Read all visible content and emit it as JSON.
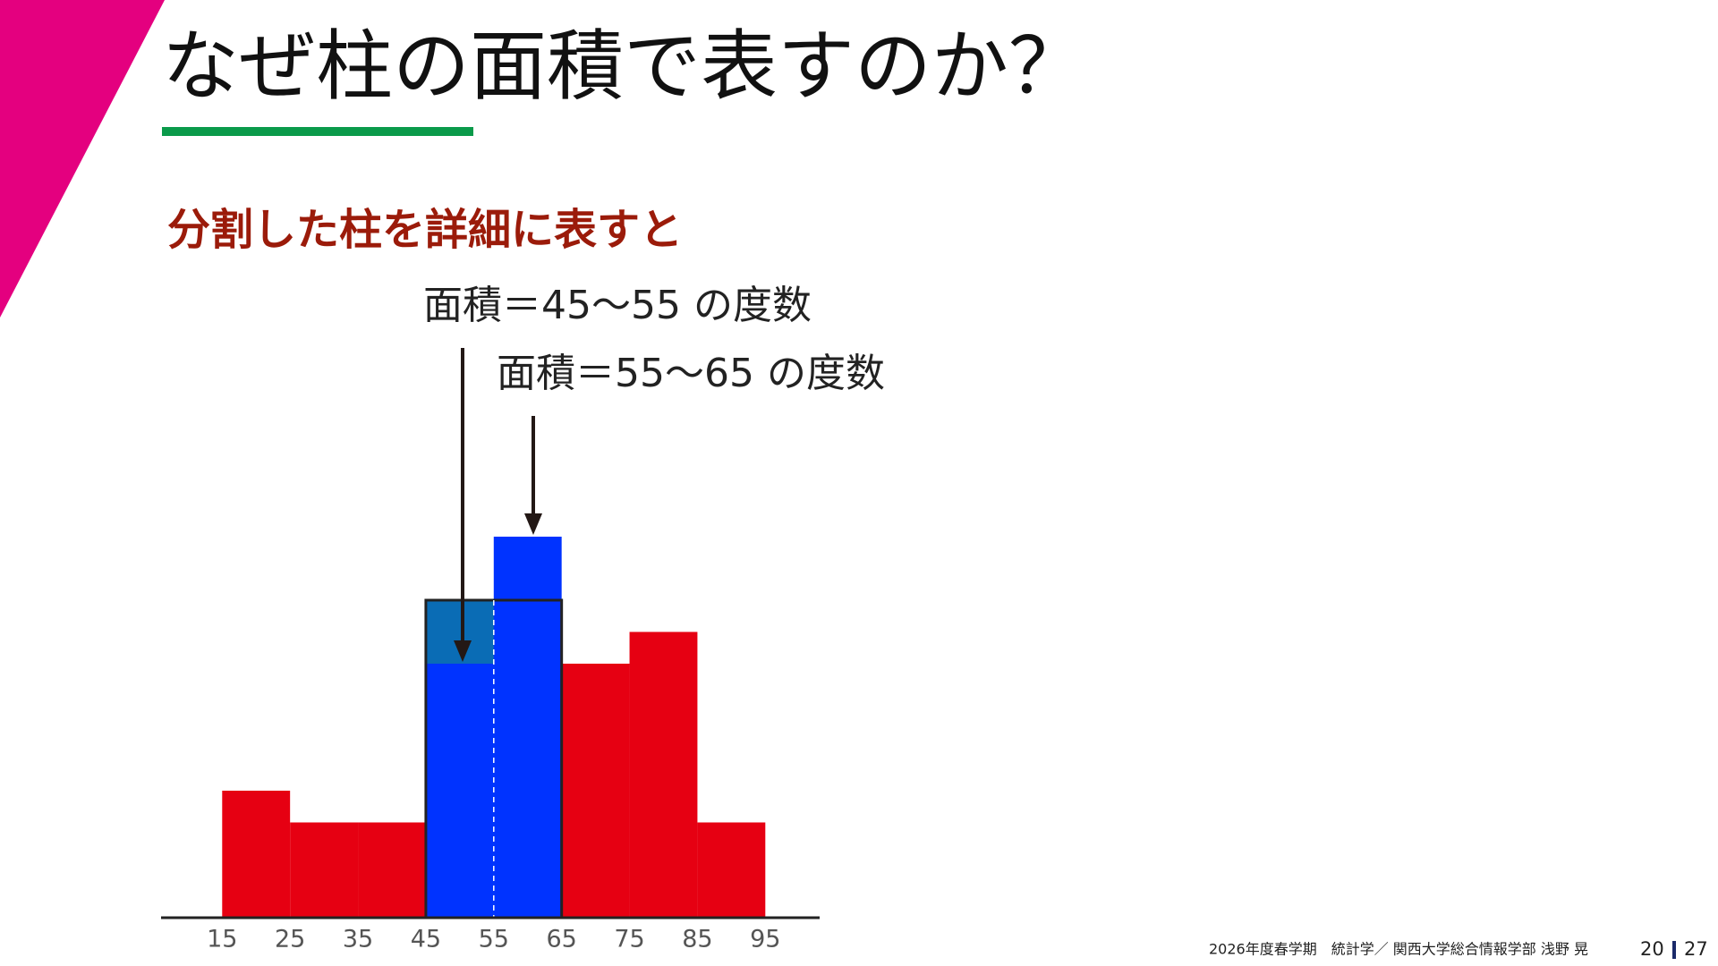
{
  "header": {
    "title": "なぜ柱の面積で表すのか？",
    "subtitle": "分割した柱を詳細に表すと"
  },
  "chart_data": {
    "type": "histogram",
    "annotations": [
      "面積＝45〜55 の度数",
      "面積＝55〜65 の度数"
    ],
    "bins": [
      15,
      25,
      35,
      45,
      55,
      65,
      75,
      85,
      95
    ],
    "values": [
      4,
      3,
      3,
      8,
      12,
      8,
      9,
      3
    ],
    "colors": [
      "#e60012",
      "#e60012",
      "#e60012",
      "#0033ff",
      "#0033ff",
      "#e60012",
      "#e60012",
      "#e60012"
    ],
    "merged": {
      "bins": [
        45,
        65
      ],
      "value": 10,
      "color": "#0a6cb5"
    },
    "xlim": [
      6,
      103
    ],
    "xticks": [
      15,
      25,
      35,
      45,
      55,
      65,
      75,
      85,
      95
    ],
    "ylim": [
      0,
      14
    ]
  },
  "footer": {
    "course": "2026年度春学期　統計学／ 関西大学総合情報学部  浅野  晃",
    "page": "20",
    "total": "27"
  }
}
